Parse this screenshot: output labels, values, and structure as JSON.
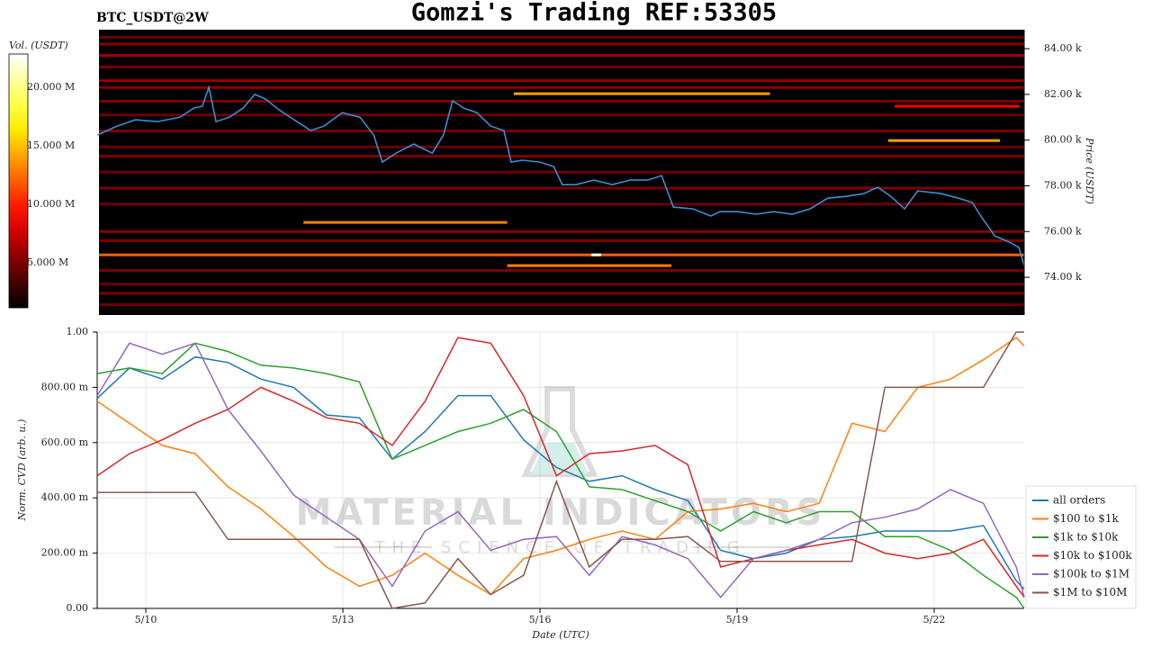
{
  "chart_data": [
    {
      "type": "heatmap",
      "title": "Gomzi's Trading REF:53305",
      "subtitle": "BTC_USDT@2W",
      "ylabel": "Price (USDT)",
      "xlim": [
        0.26,
        14.37
      ],
      "ylim": [
        72350,
        84830
      ],
      "yticks": [
        {
          "value": 74000,
          "label": "74.00 k"
        },
        {
          "value": 76000,
          "label": "76.00 k"
        },
        {
          "value": 78000,
          "label": "78.00 k"
        },
        {
          "value": 80000,
          "label": "80.00 k"
        },
        {
          "value": 82000,
          "label": "82.00 k"
        },
        {
          "value": 84000,
          "label": "84.00 k"
        }
      ],
      "colorbar": {
        "label": "Vol. (USDT)",
        "lim": [
          1150000,
          22850000
        ],
        "ticks": [
          {
            "value": 5000000,
            "label": "5.000 M"
          },
          {
            "value": 10000000,
            "label": "10.000 M"
          },
          {
            "value": 15000000,
            "label": "15.000 M"
          },
          {
            "value": 20000000,
            "label": "20.000 M"
          }
        ]
      },
      "bands": [
        {
          "price": 84500,
          "volume": 4500000,
          "x": [
            0.26,
            14.37
          ]
        },
        {
          "price": 84200,
          "volume": 5500000,
          "x": [
            0.26,
            14.37
          ]
        },
        {
          "price": 83700,
          "volume": 6500000,
          "x": [
            0.26,
            14.37
          ]
        },
        {
          "price": 83200,
          "volume": 5000000,
          "x": [
            0.26,
            14.37
          ]
        },
        {
          "price": 82600,
          "volume": 6000000,
          "x": [
            0.26,
            14.37
          ]
        },
        {
          "price": 82300,
          "volume": 5500000,
          "x": [
            0.26,
            14.37
          ]
        },
        {
          "price": 81700,
          "volume": 5000000,
          "x": [
            0.26,
            14.37
          ]
        },
        {
          "price": 81100,
          "volume": 4500000,
          "x": [
            0.26,
            14.37
          ]
        },
        {
          "price": 80400,
          "volume": 5000000,
          "x": [
            0.26,
            14.37
          ]
        },
        {
          "price": 79700,
          "volume": 4500000,
          "x": [
            0.26,
            14.37
          ]
        },
        {
          "price": 79300,
          "volume": 5000000,
          "x": [
            0.26,
            14.37
          ]
        },
        {
          "price": 78600,
          "volume": 4500000,
          "x": [
            0.26,
            14.37
          ]
        },
        {
          "price": 77900,
          "volume": 5000000,
          "x": [
            0.26,
            14.37
          ]
        },
        {
          "price": 77200,
          "volume": 4500000,
          "x": [
            0.26,
            14.37
          ]
        },
        {
          "price": 76000,
          "volume": 5500000,
          "x": [
            0.26,
            14.37
          ]
        },
        {
          "price": 75600,
          "volume": 5000000,
          "x": [
            0.26,
            14.37
          ]
        },
        {
          "price": 74980,
          "volume": 12000000,
          "x": [
            0.26,
            14.37
          ]
        },
        {
          "price": 74300,
          "volume": 5000000,
          "x": [
            0.26,
            14.37
          ]
        },
        {
          "price": 73700,
          "volume": 4500000,
          "x": [
            0.26,
            14.37
          ]
        },
        {
          "price": 73300,
          "volume": 5000000,
          "x": [
            0.26,
            14.37
          ]
        },
        {
          "price": 72800,
          "volume": 4500000,
          "x": [
            0.26,
            14.37
          ]
        },
        {
          "price": 76400,
          "volume": 13000000,
          "x": [
            3.4,
            6.5
          ]
        },
        {
          "price": 74510,
          "volume": 13000000,
          "x": [
            6.5,
            9.0
          ]
        },
        {
          "price": 82030,
          "volume": 14000000,
          "x": [
            6.6,
            10.5
          ]
        },
        {
          "price": 79980,
          "volume": 14000000,
          "x": [
            12.3,
            14.0
          ]
        },
        {
          "price": 81480,
          "volume": 9000000,
          "x": [
            12.4,
            14.3
          ]
        },
        {
          "price": 74980,
          "volume": 22000000,
          "x": [
            7.78,
            7.93
          ]
        }
      ],
      "price_line": {
        "color": "#3a8fd0",
        "x": [
          0.26,
          0.56,
          0.84,
          1.18,
          1.52,
          1.73,
          1.86,
          1.96,
          2.07,
          2.27,
          2.48,
          2.66,
          2.82,
          3.03,
          3.3,
          3.51,
          3.71,
          3.99,
          4.26,
          4.47,
          4.6,
          4.81,
          5.08,
          5.36,
          5.53,
          5.67,
          5.84,
          6.04,
          6.25,
          6.45,
          6.56,
          6.73,
          7.0,
          7.21,
          7.34,
          7.55,
          7.82,
          8.1,
          8.37,
          8.64,
          8.85,
          9.03,
          9.33,
          9.6,
          9.74,
          10.01,
          10.29,
          10.56,
          10.84,
          11.11,
          11.38,
          11.66,
          11.93,
          12.14,
          12.34,
          12.55,
          12.75,
          13.1,
          13.37,
          13.58,
          13.71,
          13.92,
          14.12,
          14.29,
          14.37
        ],
        "values": [
          80220,
          80610,
          80890,
          80810,
          81000,
          81400,
          81480,
          82310,
          80810,
          81000,
          81400,
          82000,
          81800,
          81320,
          80810,
          80420,
          80610,
          81200,
          81000,
          80220,
          79040,
          79430,
          79830,
          79430,
          80220,
          81720,
          81400,
          81200,
          80610,
          80420,
          79040,
          79120,
          79040,
          78840,
          78050,
          78050,
          78250,
          78050,
          78250,
          78250,
          78450,
          77070,
          76990,
          76680,
          76870,
          76870,
          76760,
          76870,
          76760,
          76990,
          77460,
          77540,
          77660,
          77940,
          77540,
          76990,
          77780,
          77660,
          77460,
          77270,
          76680,
          75810,
          75570,
          75300,
          74510
        ]
      }
    },
    {
      "type": "line",
      "xlabel": "Date (UTC)",
      "ylabel": "Norm. CVD (arb. u.)",
      "grid": true,
      "legend": "lower right",
      "xlim": [
        0.26,
        14.37
      ],
      "xticks": [
        {
          "value": 1,
          "label": "5/10"
        },
        {
          "value": 4,
          "label": "5/13"
        },
        {
          "value": 7,
          "label": "5/16"
        },
        {
          "value": 10,
          "label": "5/19"
        },
        {
          "value": 13,
          "label": "5/22"
        }
      ],
      "ylim": [
        0,
        1
      ],
      "yticks": [
        {
          "value": 0,
          "label": "0.00"
        },
        {
          "value": 0.2,
          "label": "200.00 m"
        },
        {
          "value": 0.4,
          "label": "400.00 m"
        },
        {
          "value": 0.6,
          "label": "600.00 m"
        },
        {
          "value": 0.8,
          "label": "800.00 m"
        },
        {
          "value": 1,
          "label": "1.00"
        }
      ],
      "watermark": {
        "title": "MATERIAL INDICATORS",
        "tagline": "THE SCIENCE OF TRADING"
      },
      "x": [
        0.26,
        0.75,
        1.25,
        1.75,
        2.25,
        2.75,
        3.25,
        3.75,
        4.25,
        4.75,
        5.25,
        5.75,
        6.25,
        6.75,
        7.25,
        7.75,
        8.25,
        8.75,
        9.25,
        9.75,
        10.25,
        10.75,
        11.25,
        11.75,
        12.25,
        12.75,
        13.25,
        13.75,
        14.25,
        14.37
      ],
      "series": [
        {
          "name": "all orders",
          "color": "#1f77b4",
          "values": [
            0.76,
            0.87,
            0.83,
            0.91,
            0.89,
            0.83,
            0.8,
            0.7,
            0.69,
            0.54,
            0.64,
            0.77,
            0.77,
            0.61,
            0.51,
            0.46,
            0.48,
            0.43,
            0.39,
            0.21,
            0.18,
            0.2,
            0.25,
            0.26,
            0.28,
            0.28,
            0.28,
            0.3,
            0.1,
            0.07
          ]
        },
        {
          "name": "$100 to $1k",
          "color": "#ff7f0e",
          "values": [
            0.75,
            0.67,
            0.59,
            0.56,
            0.44,
            0.36,
            0.26,
            0.15,
            0.08,
            0.12,
            0.2,
            0.12,
            0.05,
            0.18,
            0.21,
            0.25,
            0.28,
            0.25,
            0.35,
            0.36,
            0.38,
            0.35,
            0.38,
            0.67,
            0.64,
            0.8,
            0.83,
            0.9,
            0.98,
            0.95
          ]
        },
        {
          "name": "$1k to $10k",
          "color": "#2ca02c",
          "values": [
            0.85,
            0.87,
            0.85,
            0.96,
            0.93,
            0.88,
            0.87,
            0.85,
            0.82,
            0.54,
            0.59,
            0.64,
            0.67,
            0.72,
            0.64,
            0.44,
            0.43,
            0.39,
            0.35,
            0.28,
            0.35,
            0.31,
            0.35,
            0.35,
            0.26,
            0.26,
            0.21,
            0.12,
            0.04,
            0
          ]
        },
        {
          "name": "$10k to $100k",
          "color": "#d62728",
          "values": [
            0.48,
            0.56,
            0.61,
            0.67,
            0.72,
            0.8,
            0.75,
            0.69,
            0.67,
            0.59,
            0.75,
            0.98,
            0.96,
            0.77,
            0.48,
            0.56,
            0.57,
            0.59,
            0.52,
            0.15,
            0.18,
            0.21,
            0.23,
            0.25,
            0.2,
            0.18,
            0.2,
            0.25,
            0.08,
            0.04
          ]
        },
        {
          "name": "$100k to $1M",
          "color": "#9467bd",
          "values": [
            0.77,
            0.96,
            0.92,
            0.96,
            0.72,
            0.57,
            0.41,
            0.33,
            0.25,
            0.08,
            0.28,
            0.35,
            0.21,
            0.25,
            0.26,
            0.12,
            0.26,
            0.23,
            0.18,
            0.04,
            0.18,
            0.21,
            0.25,
            0.31,
            0.33,
            0.36,
            0.43,
            0.38,
            0.15,
            0.04
          ]
        },
        {
          "name": "$1M to $10M",
          "color": "#8c564b",
          "values": [
            0.42,
            0.42,
            0.42,
            0.42,
            0.25,
            0.25,
            0.25,
            0.25,
            0.25,
            0,
            0.02,
            0.18,
            0.05,
            0.12,
            0.46,
            0.15,
            0.25,
            0.25,
            0.26,
            0.17,
            0.17,
            0.17,
            0.17,
            0.17,
            0.8,
            0.8,
            0.8,
            0.8,
            1,
            1
          ]
        }
      ]
    }
  ]
}
